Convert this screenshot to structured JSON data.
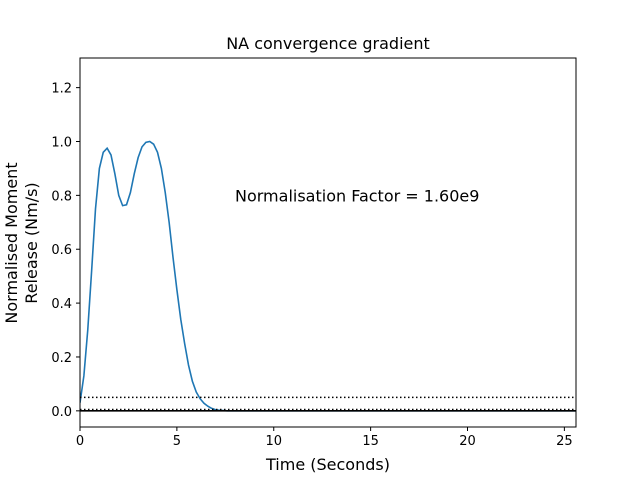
{
  "chart_data": {
    "type": "line",
    "title": "NA convergence gradient",
    "xlabel": "Time (Seconds)",
    "ylabel_lines": [
      "Normalised Moment",
      "Release (Nm/s)"
    ],
    "xlim": [
      0,
      25.6
    ],
    "ylim": [
      -0.06,
      1.31
    ],
    "xticks": [
      0,
      5,
      10,
      15,
      20,
      25
    ],
    "xtick_labels": [
      "0",
      "5",
      "10",
      "15",
      "20",
      "25"
    ],
    "yticks": [
      0.0,
      0.2,
      0.4,
      0.6,
      0.8,
      1.0,
      1.2
    ],
    "ytick_labels": [
      "0.0",
      "0.2",
      "0.4",
      "0.6",
      "0.8",
      "1.0",
      "1.2"
    ],
    "grid": false,
    "annotation": {
      "text": "Normalisation Factor = 1.60e9",
      "x": 8.0,
      "y": 0.8
    },
    "series": [
      {
        "color": "#1f77b4",
        "style": "solid",
        "x": [
          0.0,
          0.2,
          0.4,
          0.6,
          0.8,
          1.0,
          1.2,
          1.4,
          1.6,
          1.8,
          2.0,
          2.2,
          2.4,
          2.6,
          2.8,
          3.0,
          3.2,
          3.4,
          3.6,
          3.8,
          4.0,
          4.2,
          4.4,
          4.6,
          4.8,
          5.0,
          5.2,
          5.4,
          5.6,
          5.8,
          6.0,
          6.2,
          6.4,
          6.6,
          6.8,
          7.0,
          7.2,
          7.4,
          7.6,
          8.0,
          9.0,
          10.0,
          12.0,
          15.0,
          20.0,
          25.6
        ],
        "y": [
          0.03,
          0.13,
          0.3,
          0.52,
          0.75,
          0.9,
          0.96,
          0.975,
          0.95,
          0.88,
          0.8,
          0.762,
          0.765,
          0.81,
          0.88,
          0.94,
          0.98,
          0.997,
          1.0,
          0.99,
          0.96,
          0.9,
          0.81,
          0.7,
          0.57,
          0.45,
          0.34,
          0.25,
          0.17,
          0.11,
          0.07,
          0.045,
          0.028,
          0.017,
          0.009,
          0.004,
          0.002,
          0.001,
          0.0,
          0.0,
          0.0,
          0.0,
          0.0,
          0.0,
          0.0,
          0.0
        ]
      },
      {
        "color": "#000000",
        "style": "dotted",
        "x": [
          0,
          25.6
        ],
        "y": [
          0.05,
          0.05
        ]
      },
      {
        "color": "#000000",
        "style": "dotted",
        "x": [
          0,
          25.6
        ],
        "y": [
          0.005,
          0.005
        ]
      },
      {
        "color": "#000000",
        "style": "solid",
        "x": [
          0,
          25.6
        ],
        "y": [
          0.0,
          0.0
        ]
      }
    ]
  }
}
